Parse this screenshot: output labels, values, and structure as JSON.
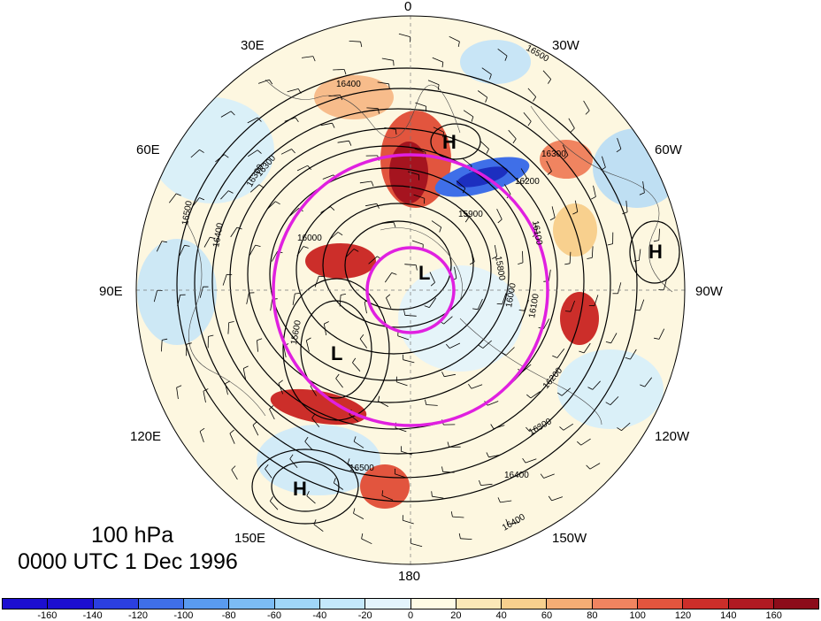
{
  "map": {
    "projection": "north-polar-stereographic",
    "longitude_labels": [
      "0",
      "30W",
      "60W",
      "90W",
      "120W",
      "150W",
      "180",
      "150E",
      "120E",
      "90E",
      "60E",
      "30E"
    ],
    "field_shaded": "geopotential height anomaly (m)",
    "field_contoured": "geopotential height (m)",
    "contour_labels": [
      "16500",
      "16400",
      "16300",
      "16200",
      "15900",
      "16000",
      "16100",
      "15800",
      "16300",
      "16400",
      "16500",
      "16400",
      "16500",
      "15600",
      "16300",
      "16200",
      "16100",
      "16000",
      "16300",
      "16400"
    ],
    "pressure_systems": [
      {
        "type": "H",
        "label": "H"
      },
      {
        "type": "H",
        "label": "H"
      },
      {
        "type": "H",
        "label": "H"
      },
      {
        "type": "L",
        "label": "L"
      },
      {
        "type": "L",
        "label": "L"
      }
    ],
    "overlay_color": "#e020e0"
  },
  "caption": {
    "level": "100 hPa",
    "time": "0000 UTC 1 Dec 1996"
  },
  "colorbar": {
    "colors": [
      "#1c0fd0",
      "#2b3fe0",
      "#3f6fe8",
      "#5a9bef",
      "#7cbcf4",
      "#a0d6f8",
      "#c4e8fb",
      "#e4f4fc",
      "#fefbe5",
      "#fbe8b8",
      "#f8d08e",
      "#f5ad75",
      "#f08460",
      "#e2553e",
      "#cc2e2a",
      "#b01a22",
      "#8c0c1a"
    ],
    "tick_labels": [
      "-160",
      "-140",
      "-120",
      "-100",
      "-80",
      "-60",
      "-40",
      "-20",
      "0",
      "20",
      "40",
      "60",
      "80",
      "100",
      "120",
      "140",
      "160"
    ]
  }
}
